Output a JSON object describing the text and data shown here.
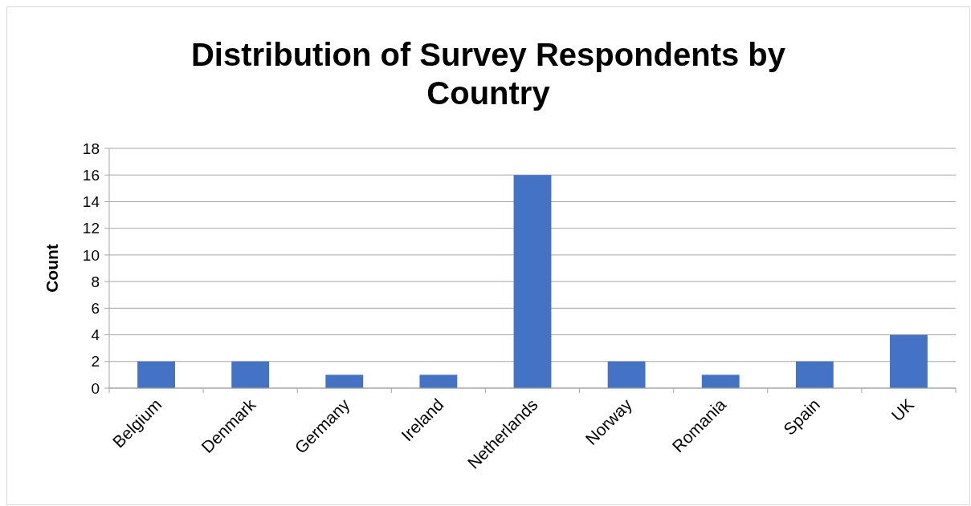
{
  "chart_data": {
    "type": "bar",
    "title": "Distribution of Survey Respondents by Country",
    "ylabel": "Count",
    "categories": [
      "Belgium",
      "Denmark",
      "Germany",
      "Ireland",
      "Netherlands",
      "Norway",
      "Romania",
      "Spain",
      "UK"
    ],
    "values": [
      2,
      2,
      1,
      1,
      16,
      2,
      1,
      2,
      4
    ],
    "color": "#4472c4",
    "ylim": [
      0,
      18
    ],
    "yticks": [
      0,
      2,
      4,
      6,
      8,
      10,
      12,
      14,
      16,
      18
    ],
    "grid": "y"
  }
}
